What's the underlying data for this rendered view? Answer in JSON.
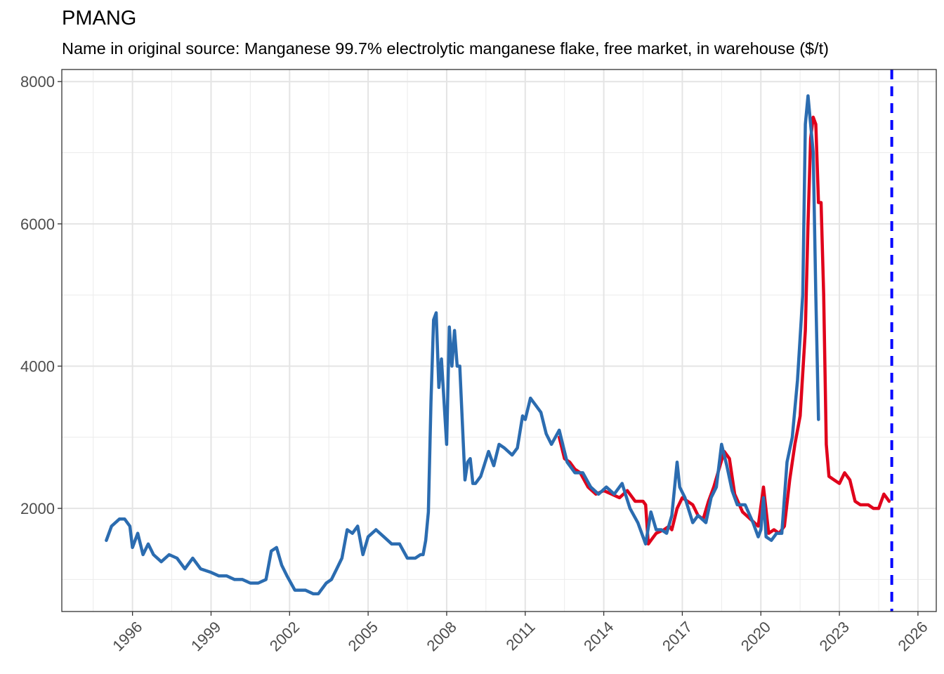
{
  "chart_data": {
    "type": "line",
    "title": "PMANG",
    "subtitle": "Name in original source: Manganese 99.7% electrolytic manganese flake, free market, in warehouse ($/t)",
    "xlabel": "",
    "ylabel": "",
    "xlim": [
      1993.3,
      2026.7
    ],
    "ylim": [
      550,
      8170
    ],
    "x_ticks": [
      1996,
      1999,
      2002,
      2005,
      2008,
      2011,
      2014,
      2017,
      2020,
      2023,
      2026
    ],
    "x_tick_labels": [
      "1996",
      "1999",
      "2002",
      "2005",
      "2008",
      "2011",
      "2014",
      "2017",
      "2020",
      "2023",
      "2026"
    ],
    "y_ticks": [
      2000,
      4000,
      6000,
      8000
    ],
    "y_tick_labels": [
      "2000",
      "4000",
      "6000",
      "8000"
    ],
    "grid": true,
    "legend": "none",
    "vline": {
      "x": 2025.0,
      "style": "dashed",
      "color": "#0000ff"
    },
    "series": [
      {
        "color": "#e0001b",
        "x": [
          2012.3,
          2012.5,
          2012.7,
          2012.9,
          2013.1,
          2013.4,
          2013.7,
          2014.0,
          2014.3,
          2014.6,
          2014.9,
          2015.2,
          2015.5,
          2015.6,
          2015.7,
          2015.8,
          2016.0,
          2016.3,
          2016.5,
          2016.6,
          2016.8,
          2017.0,
          2017.2,
          2017.4,
          2017.6,
          2017.8,
          2018.0,
          2018.2,
          2018.4,
          2018.6,
          2018.8,
          2019.0,
          2019.3,
          2019.6,
          2019.9,
          2020.1,
          2020.3,
          2020.5,
          2020.7,
          2020.9,
          2021.1,
          2021.3,
          2021.5,
          2021.7,
          2021.8,
          2021.9,
          2022.0,
          2022.1,
          2022.2,
          2022.3,
          2022.4,
          2022.5,
          2022.6,
          2022.8,
          2023.0,
          2023.2,
          2023.4,
          2023.6,
          2023.8,
          2024.1,
          2024.3,
          2024.5,
          2024.7,
          2024.8,
          2024.9
        ],
        "values": [
          3000,
          2700,
          2650,
          2550,
          2500,
          2300,
          2200,
          2250,
          2200,
          2150,
          2250,
          2100,
          2100,
          2050,
          1500,
          1550,
          1650,
          1700,
          1750,
          1700,
          2000,
          2150,
          2100,
          2050,
          1900,
          1850,
          2100,
          2300,
          2550,
          2800,
          2700,
          2200,
          1950,
          1850,
          1750,
          2300,
          1650,
          1700,
          1650,
          1750,
          2400,
          2900,
          3300,
          4500,
          6000,
          7200,
          7500,
          7400,
          6300,
          6300,
          5000,
          2900,
          2450,
          2400,
          2350,
          2500,
          2400,
          2100,
          2050,
          2050,
          2000,
          2000,
          2200,
          2150,
          2100
        ]
      },
      {
        "color": "#2b6cb0",
        "x": [
          1995.0,
          1995.2,
          1995.5,
          1995.7,
          1995.9,
          1996.0,
          1996.2,
          1996.4,
          1996.6,
          1996.8,
          1997.1,
          1997.4,
          1997.7,
          1998.0,
          1998.3,
          1998.6,
          1999.0,
          1999.3,
          1999.6,
          1999.9,
          2000.2,
          2000.5,
          2000.8,
          2001.1,
          2001.3,
          2001.5,
          2001.7,
          2001.9,
          2002.2,
          2002.6,
          2002.9,
          2003.1,
          2003.4,
          2003.6,
          2003.8,
          2004.0,
          2004.2,
          2004.4,
          2004.6,
          2004.8,
          2005.0,
          2005.3,
          2005.6,
          2005.9,
          2006.2,
          2006.5,
          2006.8,
          2007.0,
          2007.1,
          2007.2,
          2007.3,
          2007.4,
          2007.5,
          2007.6,
          2007.7,
          2007.8,
          2008.0,
          2008.1,
          2008.2,
          2008.3,
          2008.4,
          2008.5,
          2008.7,
          2008.8,
          2008.9,
          2009.0,
          2009.1,
          2009.3,
          2009.6,
          2009.8,
          2010.0,
          2010.2,
          2010.5,
          2010.7,
          2010.9,
          2011.0,
          2011.2,
          2011.4,
          2011.6,
          2011.8,
          2012.0,
          2012.3,
          2012.6,
          2012.9,
          2013.2,
          2013.5,
          2013.8,
          2014.1,
          2014.4,
          2014.7,
          2015.0,
          2015.3,
          2015.6,
          2015.8,
          2016.0,
          2016.2,
          2016.4,
          2016.6,
          2016.8,
          2016.9,
          2017.1,
          2017.4,
          2017.6,
          2017.9,
          2018.1,
          2018.3,
          2018.5,
          2018.7,
          2018.9,
          2019.1,
          2019.4,
          2019.7,
          2019.9,
          2020.0,
          2020.1,
          2020.2,
          2020.4,
          2020.6,
          2020.8,
          2021.0,
          2021.2,
          2021.4,
          2021.6,
          2021.7,
          2021.8,
          2021.9,
          2022.0,
          2022.1,
          2022.2
        ],
        "values": [
          1550,
          1750,
          1850,
          1850,
          1750,
          1450,
          1650,
          1350,
          1500,
          1350,
          1250,
          1350,
          1300,
          1150,
          1300,
          1150,
          1100,
          1050,
          1050,
          1000,
          1000,
          950,
          950,
          1000,
          1400,
          1450,
          1200,
          1050,
          850,
          850,
          800,
          800,
          950,
          1000,
          1150,
          1300,
          1700,
          1650,
          1750,
          1350,
          1600,
          1700,
          1600,
          1500,
          1500,
          1300,
          1300,
          1350,
          1350,
          1550,
          1950,
          3500,
          4650,
          4750,
          3700,
          4100,
          2900,
          4550,
          4000,
          4500,
          4000,
          4000,
          2400,
          2650,
          2700,
          2350,
          2350,
          2450,
          2800,
          2600,
          2900,
          2850,
          2750,
          2850,
          3300,
          3250,
          3550,
          3450,
          3350,
          3050,
          2900,
          3100,
          2650,
          2500,
          2500,
          2300,
          2200,
          2300,
          2200,
          2350,
          2000,
          1800,
          1500,
          1950,
          1700,
          1700,
          1650,
          1900,
          2650,
          2300,
          2150,
          1800,
          1900,
          1800,
          2150,
          2300,
          2900,
          2600,
          2250,
          2050,
          2050,
          1800,
          1600,
          1700,
          2150,
          1600,
          1550,
          1650,
          1650,
          2650,
          3000,
          3800,
          5000,
          7400,
          7800,
          7400,
          7000,
          5000,
          3250
        ]
      }
    ]
  }
}
